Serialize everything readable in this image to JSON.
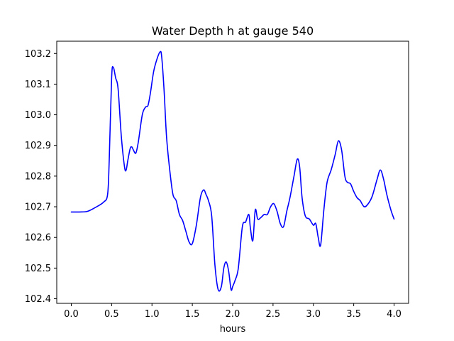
{
  "chart_data": {
    "type": "line",
    "title": "Water Depth h at gauge 540",
    "xlabel": "hours",
    "ylabel": "",
    "xlim": [
      -0.18,
      4.18
    ],
    "ylim": [
      102.385,
      103.24
    ],
    "xticks": [
      0.0,
      0.5,
      1.0,
      1.5,
      2.0,
      2.5,
      3.0,
      3.5,
      4.0
    ],
    "xtick_labels": [
      "0.0",
      "0.5",
      "1.0",
      "1.5",
      "2.0",
      "2.5",
      "3.0",
      "3.5",
      "4.0"
    ],
    "yticks": [
      102.4,
      102.5,
      102.6,
      102.7,
      102.8,
      102.9,
      103.0,
      103.1,
      103.2
    ],
    "ytick_labels": [
      "102.4",
      "102.5",
      "102.6",
      "102.7",
      "102.8",
      "102.9",
      "103.0",
      "103.1",
      "103.2"
    ],
    "grid": false,
    "line_color": "#0000ff",
    "series": [
      {
        "x": [
          0.0,
          0.1,
          0.2,
          0.3,
          0.4,
          0.45,
          0.47,
          0.5,
          0.52,
          0.55,
          0.58,
          0.62,
          0.66,
          0.68,
          0.7,
          0.73,
          0.75,
          0.77,
          0.8,
          0.83,
          0.88,
          0.92,
          0.95,
          0.98,
          1.02,
          1.06,
          1.1,
          1.12,
          1.15,
          1.18,
          1.22,
          1.26,
          1.3,
          1.34,
          1.38,
          1.42,
          1.46,
          1.5,
          1.55,
          1.6,
          1.64,
          1.67,
          1.7,
          1.74,
          1.78,
          1.82,
          1.86,
          1.89,
          1.92,
          1.95,
          1.98,
          2.0,
          2.03,
          2.07,
          2.12,
          2.16,
          2.2,
          2.22,
          2.25,
          2.28,
          2.31,
          2.35,
          2.39,
          2.43,
          2.47,
          2.51,
          2.55,
          2.59,
          2.63,
          2.67,
          2.71,
          2.76,
          2.8,
          2.83,
          2.86,
          2.9,
          2.95,
          3.0,
          3.03,
          3.06,
          3.09,
          3.13,
          3.17,
          3.22,
          3.27,
          3.31,
          3.35,
          3.39,
          3.42,
          3.46,
          3.5,
          3.54,
          3.58,
          3.63,
          3.68,
          3.73,
          3.79,
          3.83,
          3.87,
          3.91,
          3.96,
          4.0
        ],
        "y": [
          102.683,
          102.683,
          102.685,
          102.698,
          102.715,
          102.74,
          102.85,
          103.12,
          103.155,
          103.12,
          103.085,
          102.93,
          102.83,
          102.82,
          102.85,
          102.89,
          102.895,
          102.885,
          102.875,
          102.91,
          103.0,
          103.025,
          103.03,
          103.07,
          103.14,
          103.18,
          103.205,
          103.19,
          103.08,
          102.93,
          102.82,
          102.74,
          102.72,
          102.675,
          102.655,
          102.62,
          102.585,
          102.58,
          102.64,
          102.73,
          102.755,
          102.74,
          102.72,
          102.67,
          102.51,
          102.43,
          102.44,
          102.5,
          102.52,
          102.49,
          102.43,
          102.44,
          102.46,
          102.5,
          102.635,
          102.65,
          102.675,
          102.63,
          102.59,
          102.69,
          102.66,
          102.665,
          102.675,
          102.675,
          102.7,
          102.71,
          102.685,
          102.645,
          102.635,
          102.685,
          102.73,
          102.8,
          102.855,
          102.83,
          102.73,
          102.67,
          102.66,
          102.64,
          102.645,
          102.6,
          102.575,
          102.69,
          102.78,
          102.82,
          102.87,
          102.915,
          102.885,
          102.8,
          102.78,
          102.775,
          102.75,
          102.73,
          102.72,
          102.7,
          102.71,
          102.735,
          102.79,
          102.82,
          102.79,
          102.74,
          102.69,
          102.66
        ]
      }
    ]
  }
}
